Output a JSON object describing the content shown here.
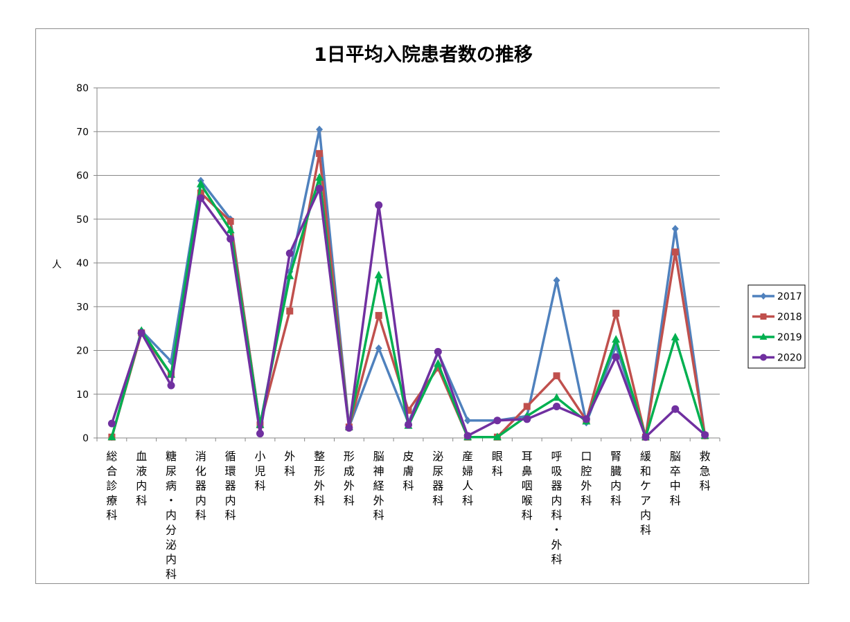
{
  "chart_data": {
    "type": "line",
    "title": "1日平均入院患者数の推移",
    "ylabel": "人",
    "xlabel": "",
    "ylim": [
      0,
      80
    ],
    "yticks": [
      0,
      10,
      20,
      30,
      40,
      50,
      60,
      70,
      80
    ],
    "grid": true,
    "legend_position": "right",
    "categories": [
      "総合診療科",
      "血液内科",
      "糖尿病・内分泌内科",
      "消化器内科",
      "循環器内科",
      "小児科",
      "外科",
      "整形外科",
      "形成外科",
      "脳神経外科",
      "皮膚科",
      "泌尿器科",
      "産婦人科",
      "眼科",
      "耳鼻咽喉科",
      "呼吸器内科・外科",
      "口腔外科",
      "腎臓内科",
      "緩和ケア内科",
      "脳卒中科",
      "救急科"
    ],
    "series": [
      {
        "name": "2017",
        "color": "#4f81bd",
        "marker": "diamond",
        "values": [
          0.2,
          24.5,
          17.5,
          58.8,
          50,
          3,
          38,
          70.5,
          2.5,
          20.5,
          3.5,
          19.5,
          4,
          4,
          5,
          36,
          3.5,
          21,
          0.2,
          47.8,
          0.5
        ]
      },
      {
        "name": "2018",
        "color": "#c0504d",
        "marker": "square",
        "values": [
          0.2,
          24,
          14.5,
          56,
          49.5,
          3,
          29,
          65,
          2.5,
          28,
          6.3,
          16,
          0.2,
          0.2,
          7.2,
          14.2,
          4,
          28.5,
          0.2,
          42.5,
          0.5
        ]
      },
      {
        "name": "2019",
        "color": "#00b050",
        "marker": "triangle",
        "values": [
          0.2,
          24.5,
          14.5,
          58,
          47.5,
          3,
          37,
          59.5,
          2.5,
          37.2,
          2.8,
          17,
          0.2,
          0.2,
          5,
          9.2,
          3.8,
          22.5,
          0.2,
          23,
          0.5
        ]
      },
      {
        "name": "2020",
        "color": "#7030a0",
        "marker": "circle",
        "values": [
          3.3,
          24,
          12,
          54.8,
          45.5,
          1,
          42.2,
          57,
          2.3,
          53.2,
          3,
          19.7,
          0.5,
          4,
          4.3,
          7.2,
          4.3,
          18.5,
          0.2,
          6.6,
          0.7
        ]
      }
    ]
  }
}
